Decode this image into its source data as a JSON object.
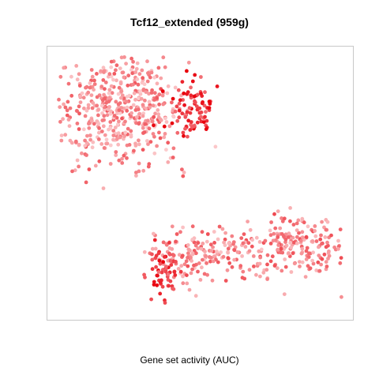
{
  "chart_data": {
    "type": "scatter",
    "title": "Tcf12_extended (959g)",
    "xlabel": "Gene set activity (AUC)",
    "ylabel": "",
    "grid": false,
    "legend": "none",
    "color_scale": {
      "low": "#fff0f0",
      "high": "#e8000b"
    },
    "value_range": [
      0,
      1
    ],
    "clusters": [
      {
        "label": "upper-left region, light pink",
        "center": [
          0.21,
          0.78
        ],
        "spread": [
          0.19,
          0.19
        ],
        "n": 470,
        "mean_activity": 0.4
      },
      {
        "label": "upper-right shoulder, red",
        "center": [
          0.48,
          0.79
        ],
        "spread": [
          0.07,
          0.1
        ],
        "n": 80,
        "mean_activity": 0.78
      },
      {
        "label": "lower-middle, mixed",
        "center": [
          0.5,
          0.22
        ],
        "spread": [
          0.17,
          0.08
        ],
        "n": 170,
        "mean_activity": 0.42
      },
      {
        "label": "lower-right region, light pink",
        "center": [
          0.83,
          0.26
        ],
        "spread": [
          0.15,
          0.1
        ],
        "n": 200,
        "mean_activity": 0.45
      },
      {
        "label": "bottom-left tail, red",
        "center": [
          0.38,
          0.15
        ],
        "spread": [
          0.05,
          0.08
        ],
        "n": 60,
        "mean_activity": 0.75
      }
    ]
  }
}
